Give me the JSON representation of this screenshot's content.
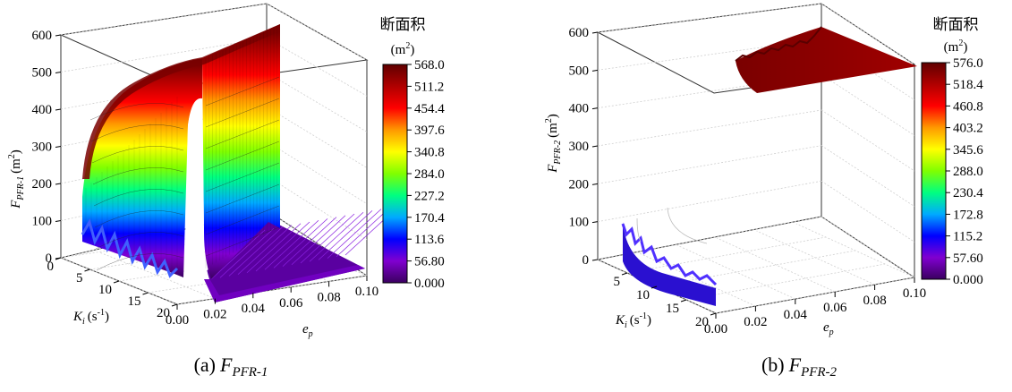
{
  "chart_data": [
    {
      "type": "3d-surface",
      "panel_label": "(a)",
      "caption_var": "F",
      "caption_sub": "PFR-1",
      "zlabel_var": "F",
      "zlabel_sub": "PFR-1",
      "zlabel_unit": "(m",
      "zlabel_unit_sup": "2",
      "zlabel_unit_close": ")",
      "xlabel_var": "K",
      "xlabel_sub": "i",
      "xlabel_unit": "(s",
      "xlabel_unit_sup": "-1",
      "xlabel_unit_close": ")",
      "ylabel_var": "e",
      "ylabel_sub": "p",
      "z_ticks": [
        "0",
        "100",
        "200",
        "300",
        "400",
        "500",
        "600"
      ],
      "x_ticks": [
        "0",
        "5",
        "10",
        "15",
        "20"
      ],
      "y_ticks": [
        "0.00",
        "0.02",
        "0.04",
        "0.06",
        "0.08",
        "0.10"
      ],
      "zlim": [
        0,
        600
      ],
      "xlim": [
        0,
        20
      ],
      "ylim": [
        0,
        0.1
      ],
      "colorbar_title": "断面积",
      "colorbar_unit": "(m",
      "colorbar_unit_sup": "2",
      "colorbar_unit_close": ")",
      "colorbar_ticks": [
        "568.0",
        "511.2",
        "454.4",
        "397.6",
        "340.8",
        "284.0",
        "227.2",
        "170.4",
        "113.6",
        "56.80",
        "0.000"
      ],
      "colorbar_range": [
        0,
        568.0
      ],
      "surface_summary": {
        "peak_value": 568,
        "cliff_ep": 0.02,
        "baseline_value": 0,
        "low_ki_values": [
          120,
          100
        ]
      }
    },
    {
      "type": "3d-surface",
      "panel_label": "(b)",
      "caption_var": "F",
      "caption_sub": "PFR-2",
      "zlabel_var": "F",
      "zlabel_sub": "PFR-2",
      "zlabel_unit": "(m",
      "zlabel_unit_sup": "2",
      "zlabel_unit_close": ")",
      "xlabel_var": "K",
      "xlabel_sub": "i",
      "xlabel_unit": "(s",
      "xlabel_unit_sup": "-1",
      "xlabel_unit_close": ")",
      "ylabel_var": "e",
      "ylabel_sub": "p",
      "z_ticks": [
        "0",
        "100",
        "200",
        "300",
        "400",
        "500",
        "600"
      ],
      "x_ticks": [
        "5",
        "10",
        "15",
        "20"
      ],
      "y_ticks": [
        "0.00",
        "0.02",
        "0.04",
        "0.06",
        "0.08",
        "0.10"
      ],
      "zlim": [
        0,
        600
      ],
      "xlim": [
        0,
        20
      ],
      "ylim": [
        0,
        0.1
      ],
      "colorbar_title": "断面积",
      "colorbar_unit": "(m",
      "colorbar_unit_sup": "2",
      "colorbar_unit_close": ")",
      "colorbar_ticks": [
        "576.0",
        "518.4",
        "460.8",
        "403.2",
        "345.6",
        "288.0",
        "230.4",
        "172.8",
        "115.2",
        "57.60",
        "0.000"
      ],
      "colorbar_range": [
        0,
        576.0
      ],
      "surface_summary": {
        "peak_value": 576,
        "baseline_value": 0
      }
    }
  ],
  "colors": {
    "colormap": [
      "#3a0060",
      "#8000d0",
      "#0000ff",
      "#00aaff",
      "#00ff80",
      "#80ff00",
      "#ffff00",
      "#ff9900",
      "#ff0000",
      "#b00000",
      "#600000"
    ],
    "frame": "#333333",
    "grid": "#cfcfcf"
  }
}
